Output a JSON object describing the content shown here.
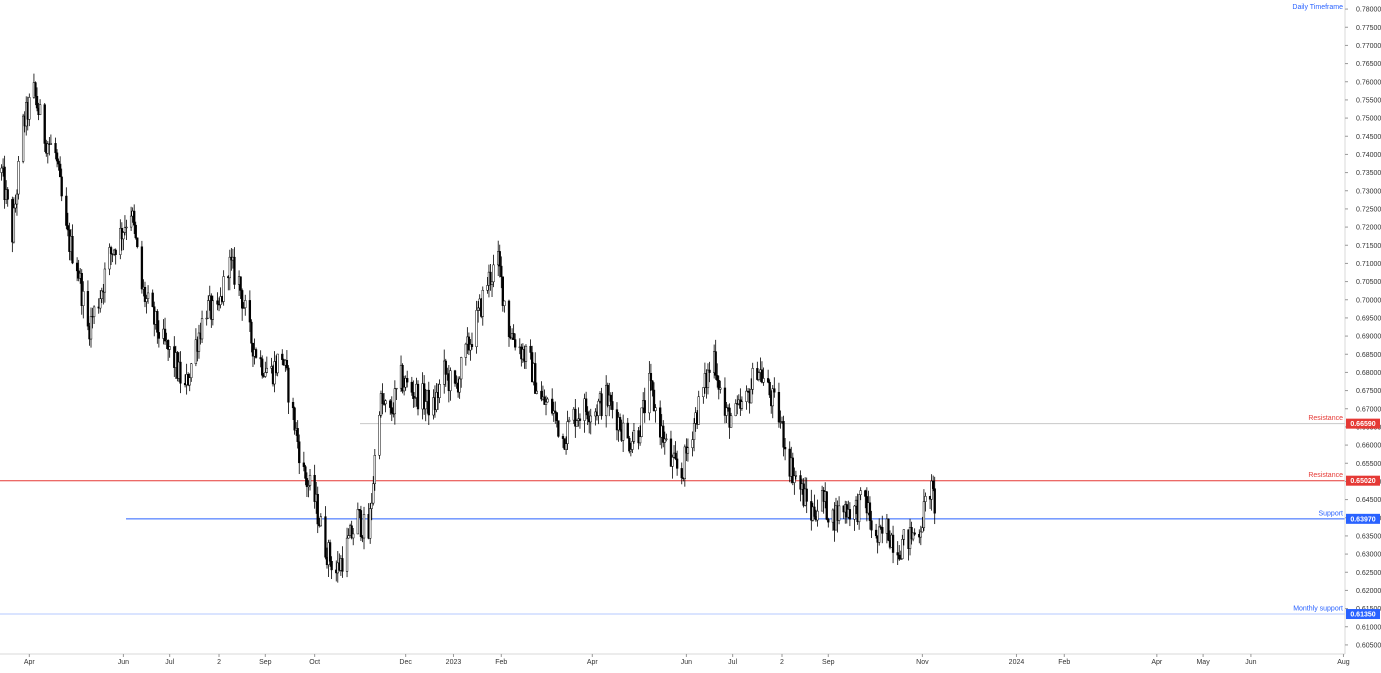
{
  "timeframe_label": "Daily Timeframe",
  "colors": {
    "candle": "#000000",
    "resistance": "#e53935",
    "support": "#2962ff",
    "upper_resistance_line": "#c8c8c8",
    "monthly_support_line": "#b4c8ff",
    "axis_text": "#333333"
  },
  "chart_data": {
    "type": "candlestick",
    "title": "",
    "ylim": [
      0.6025,
      0.7825
    ],
    "y_ticks": [
      "0.78000",
      "0.77500",
      "0.77000",
      "0.76500",
      "0.76000",
      "0.75500",
      "0.75000",
      "0.74500",
      "0.74000",
      "0.73500",
      "0.73000",
      "0.72500",
      "0.72000",
      "0.71500",
      "0.71000",
      "0.70500",
      "0.70000",
      "0.69500",
      "0.69000",
      "0.68500",
      "0.68000",
      "0.67500",
      "0.67000",
      "0.66500",
      "0.66000",
      "0.65500",
      "0.65000",
      "0.64500",
      "0.64000",
      "0.63500",
      "0.63000",
      "0.62500",
      "0.62000",
      "0.61500",
      "0.61000",
      "0.60500"
    ],
    "x_ticks": [
      "Apr",
      "Jun",
      "Jul",
      "2",
      "Sep",
      "Oct",
      "Dec",
      "2023",
      "Feb",
      "Apr",
      "Jun",
      "Jul",
      "2",
      "Sep",
      "Nov",
      "2024",
      "Feb",
      "Apr",
      "May",
      "Jun",
      "Aug"
    ],
    "grid": false,
    "levels": [
      {
        "name": "Resistance",
        "value": 0.6659,
        "badge": "0.66590",
        "role": "upper-resistance"
      },
      {
        "name": "Resistance",
        "value": 0.6502,
        "badge": "0.65020",
        "role": "resistance"
      },
      {
        "name": "Support",
        "value": 0.6397,
        "badge": "0.63970",
        "role": "support"
      },
      {
        "name": "Monthly support",
        "value": 0.6135,
        "badge": "0.61350",
        "role": "monthly-support"
      }
    ],
    "price_path_keypoints": [
      [
        "2022-03-14",
        0.735
      ],
      [
        "2022-03-21",
        0.718
      ],
      [
        "2022-03-28",
        0.748
      ],
      [
        "2022-04-04",
        0.757
      ],
      [
        "2022-04-11",
        0.745
      ],
      [
        "2022-04-18",
        0.74
      ],
      [
        "2022-04-25",
        0.718
      ],
      [
        "2022-05-02",
        0.71
      ],
      [
        "2022-05-09",
        0.692
      ],
      [
        "2022-05-16",
        0.7
      ],
      [
        "2022-05-23",
        0.712
      ],
      [
        "2022-05-30",
        0.718
      ],
      [
        "2022-06-06",
        0.725
      ],
      [
        "2022-06-13",
        0.703
      ],
      [
        "2022-06-20",
        0.695
      ],
      [
        "2022-06-27",
        0.688
      ],
      [
        "2022-07-04",
        0.683
      ],
      [
        "2022-07-11",
        0.675
      ],
      [
        "2022-07-18",
        0.688
      ],
      [
        "2022-07-25",
        0.698
      ],
      [
        "2022-08-01",
        0.695
      ],
      [
        "2022-08-08",
        0.71
      ],
      [
        "2022-08-15",
        0.705
      ],
      [
        "2022-08-22",
        0.69
      ],
      [
        "2022-08-29",
        0.683
      ],
      [
        "2022-09-05",
        0.68
      ],
      [
        "2022-09-12",
        0.685
      ],
      [
        "2022-09-19",
        0.668
      ],
      [
        "2022-09-26",
        0.652
      ],
      [
        "2022-10-03",
        0.645
      ],
      [
        "2022-10-10",
        0.632
      ],
      [
        "2022-10-17",
        0.625
      ],
      [
        "2022-10-24",
        0.632
      ],
      [
        "2022-10-31",
        0.64
      ],
      [
        "2022-11-07",
        0.635
      ],
      [
        "2022-11-14",
        0.672
      ],
      [
        "2022-11-21",
        0.668
      ],
      [
        "2022-11-28",
        0.678
      ],
      [
        "2022-12-05",
        0.675
      ],
      [
        "2022-12-12",
        0.673
      ],
      [
        "2022-12-19",
        0.67
      ],
      [
        "2022-12-26",
        0.68
      ],
      [
        "2023-01-02",
        0.675
      ],
      [
        "2023-01-09",
        0.685
      ],
      [
        "2023-01-16",
        0.694
      ],
      [
        "2023-01-23",
        0.705
      ],
      [
        "2023-01-30",
        0.71
      ],
      [
        "2023-02-06",
        0.692
      ],
      [
        "2023-02-13",
        0.687
      ],
      [
        "2023-02-20",
        0.682
      ],
      [
        "2023-02-27",
        0.672
      ],
      [
        "2023-03-06",
        0.67
      ],
      [
        "2023-03-13",
        0.662
      ],
      [
        "2023-03-20",
        0.668
      ],
      [
        "2023-03-27",
        0.67
      ],
      [
        "2023-04-03",
        0.67
      ],
      [
        "2023-04-10",
        0.673
      ],
      [
        "2023-04-17",
        0.668
      ],
      [
        "2023-04-24",
        0.661
      ],
      [
        "2023-05-01",
        0.664
      ],
      [
        "2023-05-08",
        0.676
      ],
      [
        "2023-05-15",
        0.665
      ],
      [
        "2023-05-22",
        0.655
      ],
      [
        "2023-05-29",
        0.652
      ],
      [
        "2023-06-05",
        0.665
      ],
      [
        "2023-06-12",
        0.675
      ],
      [
        "2023-06-19",
        0.685
      ],
      [
        "2023-06-26",
        0.668
      ],
      [
        "2023-07-03",
        0.668
      ],
      [
        "2023-07-10",
        0.672
      ],
      [
        "2023-07-17",
        0.682
      ],
      [
        "2023-07-24",
        0.675
      ],
      [
        "2023-07-31",
        0.668
      ],
      [
        "2023-08-07",
        0.655
      ],
      [
        "2023-08-14",
        0.648
      ],
      [
        "2023-08-21",
        0.641
      ],
      [
        "2023-08-28",
        0.645
      ],
      [
        "2023-09-04",
        0.64
      ],
      [
        "2023-09-11",
        0.643
      ],
      [
        "2023-09-18",
        0.642
      ],
      [
        "2023-09-25",
        0.645
      ],
      [
        "2023-10-02",
        0.633
      ],
      [
        "2023-10-09",
        0.637
      ],
      [
        "2023-10-16",
        0.632
      ],
      [
        "2023-10-23",
        0.634
      ],
      [
        "2023-10-30",
        0.637
      ],
      [
        "2023-11-06",
        0.648
      ],
      [
        "2023-11-09",
        0.644
      ]
    ]
  }
}
